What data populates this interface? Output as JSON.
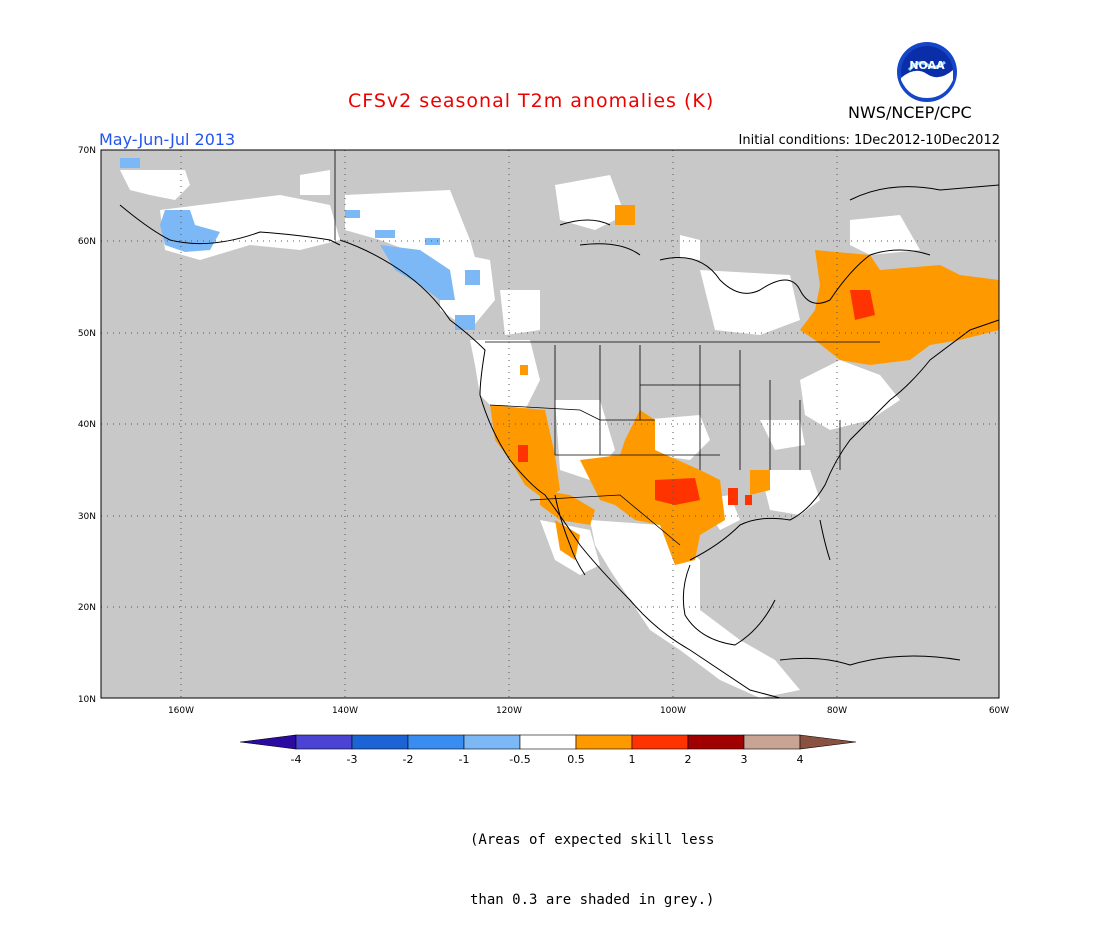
{
  "title": "CFSv2 seasonal T2m anomalies (K)",
  "period": "May-Jun-Jul 2013",
  "initial_conditions": "Initial conditions: 1Dec2012-10Dec2012",
  "organization": "NWS/NCEP/CPC",
  "logo_text": "NOAA",
  "note_line1": "(Areas of expected skill less",
  "note_line2": "than 0.3 are shaded in grey.)",
  "lat_labels": [
    "10N",
    "20N",
    "30N",
    "40N",
    "50N",
    "60N",
    "70N"
  ],
  "lon_labels": [
    "160W",
    "140W",
    "120W",
    "100W",
    "80W",
    "60W"
  ],
  "colorbar": {
    "ticks": [
      "-4",
      "-3",
      "-2",
      "-1",
      "-0.5",
      "0.5",
      "1",
      "2",
      "3",
      "4"
    ],
    "colors": [
      "#2a0aa0",
      "#4b43d3",
      "#1c64d6",
      "#3a8df0",
      "#7bb8f5",
      "#ffffff",
      "#ff9900",
      "#ff3300",
      "#a10000",
      "#c9a394",
      "#8a5040"
    ]
  },
  "colors": {
    "title": "#ee0000",
    "period": "#2255ee",
    "grey_mask": "#c8c8c8",
    "land_neutral": "#ffffff",
    "warm_1": "#ff9900",
    "warm_2": "#ff3300",
    "cool_1": "#7bb8f5"
  }
}
